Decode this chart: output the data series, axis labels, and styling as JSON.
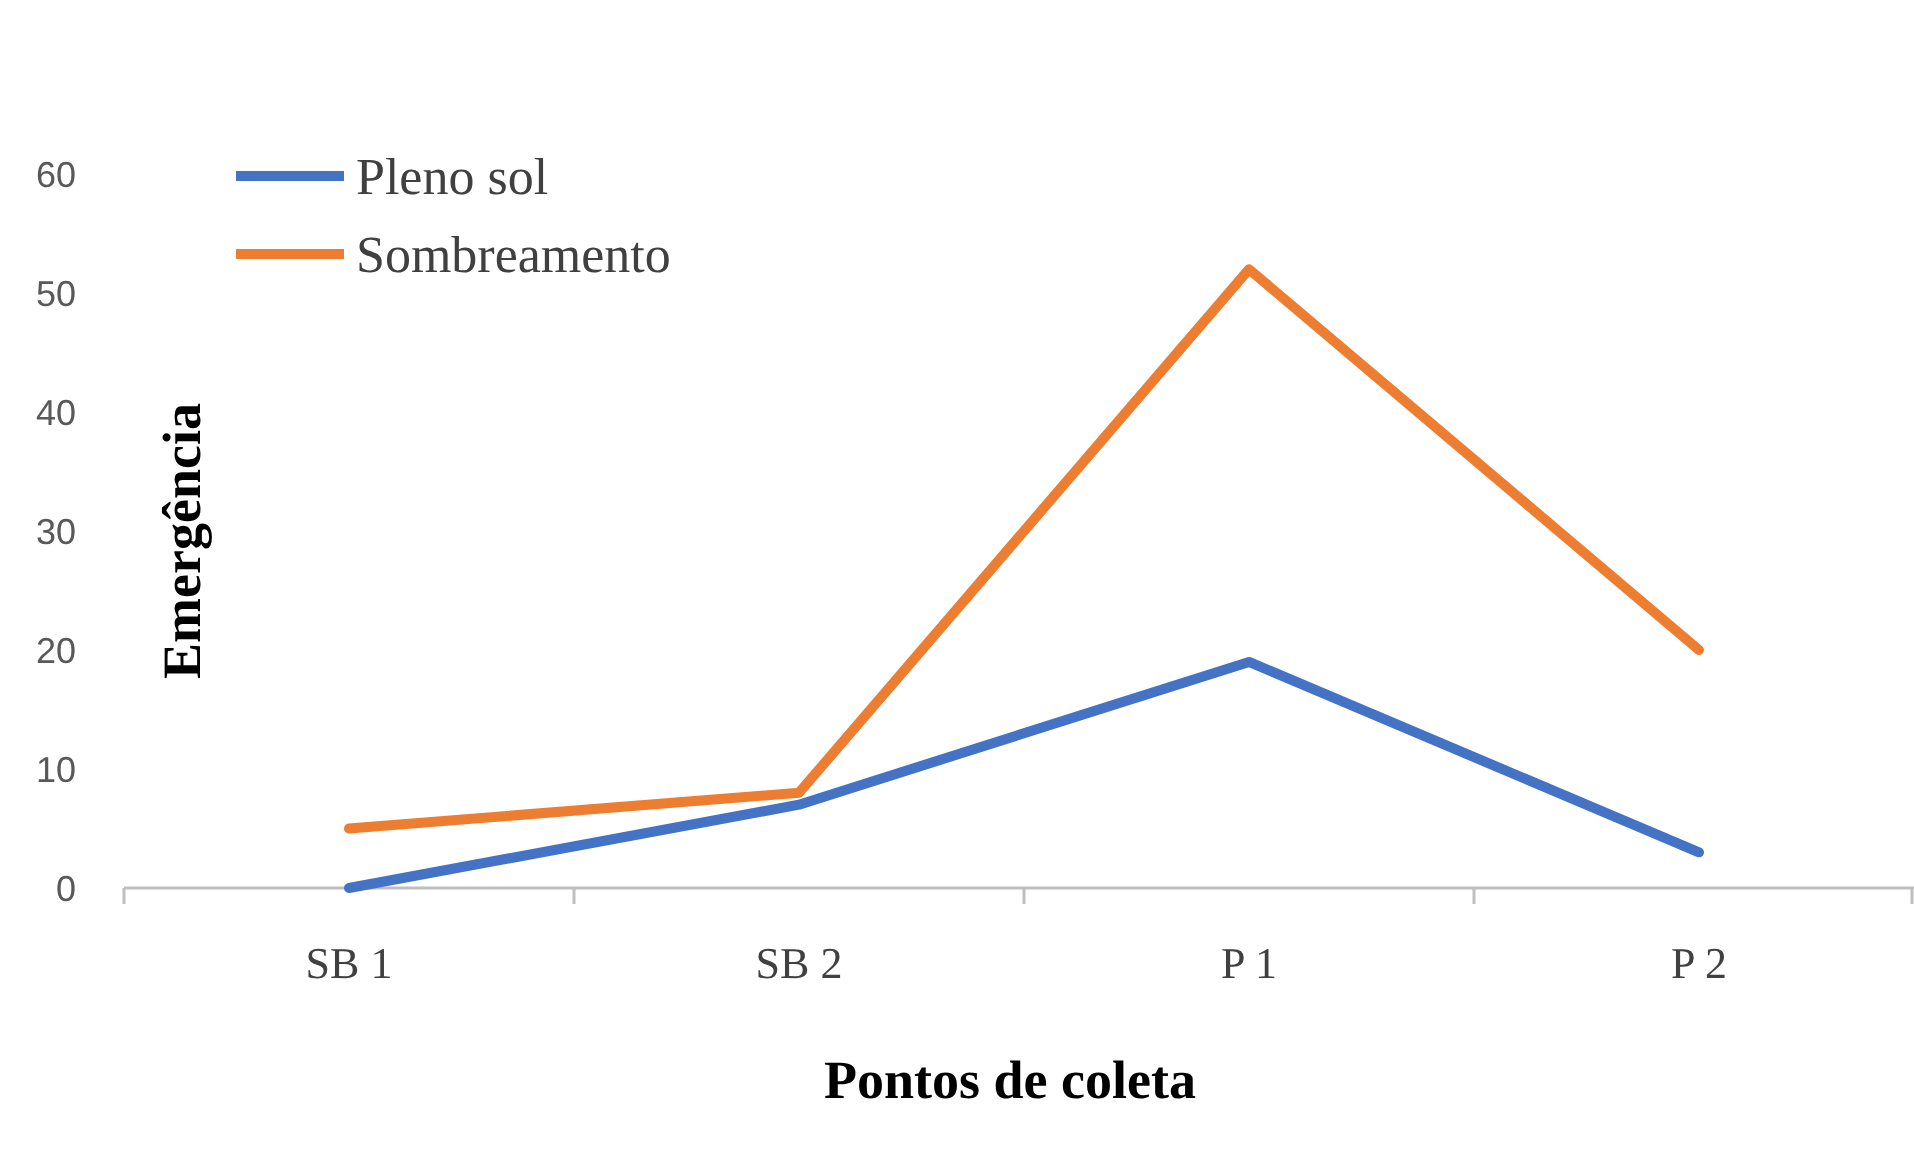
{
  "chart_data": {
    "type": "line",
    "xlabel": "Pontos de coleta",
    "ylabel": "Emergência",
    "categories": [
      "SB 1",
      "SB 2",
      "P 1",
      "P 2"
    ],
    "series": [
      {
        "name": "Pleno sol",
        "color": "#4472c4",
        "values": [
          0,
          7,
          19,
          3
        ]
      },
      {
        "name": "Sombreamento",
        "color": "#ed7d31",
        "values": [
          5,
          8,
          52,
          20
        ]
      }
    ],
    "ylim": [
      0,
      60
    ],
    "yticks": [
      0,
      10,
      20,
      30,
      40,
      50,
      60
    ],
    "grid": false,
    "legend": "top left",
    "marker": "none",
    "line_style": "solid"
  }
}
